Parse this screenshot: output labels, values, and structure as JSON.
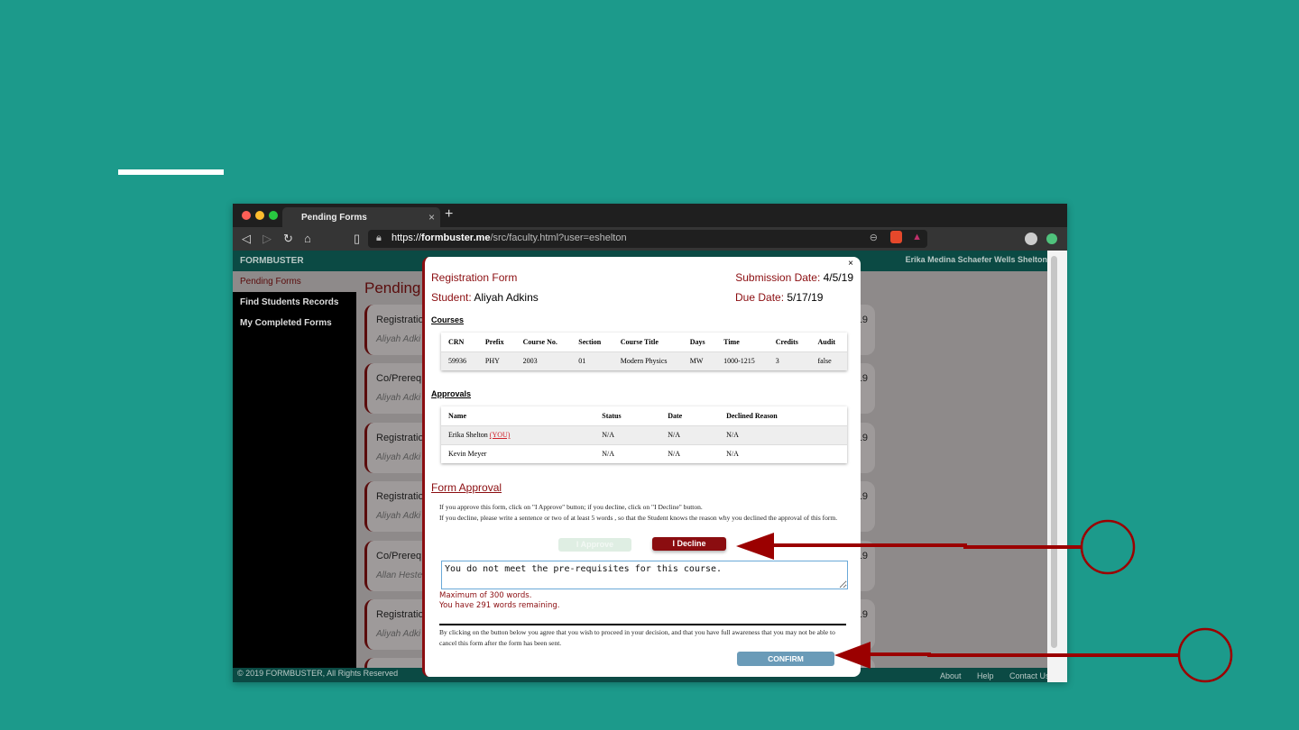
{
  "browser": {
    "tab_title": "Pending Forms",
    "url_scheme": "https://",
    "url_host": "formbuster.me",
    "url_path": "/src/faculty.html?user=eshelton"
  },
  "app": {
    "brand": "FORMBUSTER",
    "user": "Erika Medina Schaefer Wells Shelton",
    "footer_copy": "© 2019 FORMBUSTER, All Rights Reserved",
    "footer_links": [
      "About",
      "Help",
      "Contact Us"
    ]
  },
  "sidebar": {
    "items": [
      {
        "label": "Pending Forms"
      },
      {
        "label": "Find Students Records"
      },
      {
        "label": "My Completed Forms"
      }
    ]
  },
  "main": {
    "title": "Pending",
    "cards": [
      {
        "title": "Registratio",
        "student": "Aliyah Adki",
        "date": "19"
      },
      {
        "title": "Co/Prereq",
        "student": "Aliyah Adki",
        "date": "19"
      },
      {
        "title": "Registratio",
        "student": "Aliyah Adki",
        "date": "19"
      },
      {
        "title": "Registratio",
        "student": "Aliyah Adki",
        "date": "19"
      },
      {
        "title": "Co/Prereq",
        "student": "Allan Heste",
        "date": "19"
      },
      {
        "title": "Registratio",
        "student": "Aliyah Adki",
        "date": "19"
      }
    ]
  },
  "modal": {
    "close": "×",
    "form_type": "Registration Form",
    "submission_label": "Submission Date:",
    "submission_date": "4/5/19",
    "student_label": "Student:",
    "student_name": "Aliyah Adkins",
    "due_label": "Due Date:",
    "due_date": "5/17/19",
    "courses_heading": "Courses",
    "courses_headers": [
      "CRN",
      "Prefix",
      "Course No.",
      "Section",
      "Course Title",
      "Days",
      "Time",
      "Credits",
      "Audit"
    ],
    "courses_rows": [
      [
        "59936",
        "PHY",
        "2003",
        "01",
        "Modern Physics",
        "MW",
        "1000-1215",
        "3",
        "false"
      ]
    ],
    "approvals_heading": "Approvals",
    "approvals_headers": [
      "Name",
      "Status",
      "Date",
      "Declined Reason"
    ],
    "approvals_rows": [
      {
        "name": "Erika Shelton",
        "you": "(YOU)",
        "status": "N/A",
        "date": "N/A",
        "reason": "N/A"
      },
      {
        "name": "Kevin Meyer",
        "status": "N/A",
        "date": "N/A",
        "reason": "N/A"
      }
    ],
    "approval_heading": "Form Approval",
    "instructions_1": "If you approve this form, click on \"I Approve\" button; if you decline, click on \"I Decline\" button.",
    "instructions_2": "If you decline, please write a sentence or two of at least 5 words , so that the Student knows the reason why you declined the approval of this form.",
    "approve_label": "I Approve",
    "decline_label": "I Decline",
    "reason_value": "You do not meet the pre-requisites for this course.",
    "max_words": "Maximum of 300 words.",
    "remaining": "You have 291 words remaining.",
    "disclaimer": "By clicking on the button below you agree that you wish to proceed in your decision, and that you have full awareness that you may not be able to cancel this form after the form has been sent.",
    "confirm_label": "CONFIRM"
  },
  "colors": {
    "background": "#1c9a8b",
    "accent": "#8b0d10",
    "annotation": "#9b0000",
    "confirm": "#6a9bb8"
  }
}
